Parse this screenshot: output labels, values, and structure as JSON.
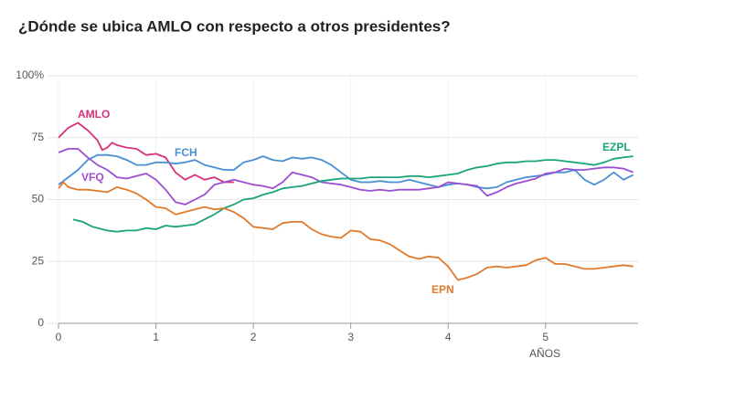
{
  "chart_data": {
    "type": "line",
    "title": "¿Dónde se ubica AMLO con respecto a otros presidentes?",
    "x_label": "AÑOS",
    "xlim": [
      0,
      5.95
    ],
    "xticks": [
      0,
      1,
      2,
      3,
      4,
      5
    ],
    "ylim": [
      0,
      100
    ],
    "yticks": [
      0,
      25,
      50,
      75,
      {
        "value": 100,
        "label": "100%"
      }
    ],
    "grid": true,
    "series": [
      {
        "name": "AMLO",
        "color": "#d9317a",
        "x": [
          0,
          0.1,
          0.2,
          0.3,
          0.4,
          0.45,
          0.5,
          0.55,
          0.6,
          0.7,
          0.8,
          0.9,
          1.0,
          1.1,
          1.2,
          1.3,
          1.4,
          1.5,
          1.6,
          1.7,
          1.8
        ],
        "values": [
          75,
          79,
          81,
          78,
          74,
          70,
          71,
          73,
          72,
          71,
          70.5,
          68,
          68.5,
          67,
          61,
          58,
          60,
          58,
          59,
          57,
          57
        ]
      },
      {
        "name": "FCH",
        "color": "#4a8fd4",
        "x": [
          0,
          0.1,
          0.2,
          0.3,
          0.4,
          0.5,
          0.6,
          0.7,
          0.8,
          0.9,
          1.0,
          1.1,
          1.2,
          1.3,
          1.4,
          1.5,
          1.6,
          1.7,
          1.8,
          1.9,
          2.0,
          2.1,
          2.2,
          2.3,
          2.4,
          2.5,
          2.6,
          2.7,
          2.8,
          2.9,
          3.0,
          3.1,
          3.2,
          3.3,
          3.4,
          3.5,
          3.6,
          3.7,
          3.8,
          3.9,
          4.0,
          4.1,
          4.2,
          4.3,
          4.4,
          4.5,
          4.6,
          4.7,
          4.8,
          4.9,
          5.0,
          5.1,
          5.2,
          5.3,
          5.4,
          5.5,
          5.6,
          5.7,
          5.8,
          5.9
        ],
        "values": [
          56,
          59,
          62,
          66,
          68,
          68,
          67.5,
          66,
          64,
          64,
          65,
          65,
          64.5,
          65,
          66,
          64,
          63,
          62,
          62,
          65,
          66,
          67.5,
          66,
          65.5,
          67,
          66.5,
          67,
          66,
          64,
          61,
          58,
          57,
          57,
          57.5,
          57,
          57,
          58,
          57,
          56,
          55,
          56,
          56.5,
          56,
          55,
          54.5,
          55,
          57,
          58,
          59,
          59.5,
          60,
          61,
          61,
          62,
          58,
          56,
          58,
          61,
          58,
          60
        ]
      },
      {
        "name": "VFQ",
        "color": "#9c4fd0",
        "x": [
          0,
          0.1,
          0.2,
          0.3,
          0.4,
          0.5,
          0.6,
          0.7,
          0.8,
          0.9,
          1.0,
          1.1,
          1.2,
          1.3,
          1.4,
          1.5,
          1.6,
          1.7,
          1.8,
          1.9,
          2.0,
          2.1,
          2.2,
          2.3,
          2.4,
          2.5,
          2.6,
          2.7,
          2.8,
          2.9,
          3.0,
          3.1,
          3.2,
          3.3,
          3.4,
          3.5,
          3.6,
          3.7,
          3.8,
          3.9,
          4.0,
          4.1,
          4.2,
          4.3,
          4.4,
          4.5,
          4.6,
          4.7,
          4.8,
          4.9,
          5.0,
          5.1,
          5.2,
          5.3,
          5.4,
          5.5,
          5.6,
          5.7,
          5.8,
          5.9
        ],
        "values": [
          69,
          70.5,
          70.5,
          67,
          64,
          62,
          59,
          58.5,
          59.5,
          60.5,
          58,
          54,
          49,
          48,
          50,
          52,
          56,
          57,
          58,
          57,
          56,
          55.5,
          54.5,
          57,
          61,
          60,
          59,
          57,
          56.5,
          56,
          55,
          54,
          53.5,
          54,
          53.5,
          54,
          54,
          54,
          54.5,
          55,
          57,
          56.5,
          56,
          55.5,
          51.5,
          53,
          55,
          56.5,
          57.5,
          58.5,
          60.5,
          61,
          62.5,
          62,
          62,
          62.5,
          63,
          63,
          62.5,
          61
        ]
      },
      {
        "name": "EZPL",
        "color": "#18a57a",
        "x": [
          0.15,
          0.25,
          0.35,
          0.5,
          0.6,
          0.7,
          0.8,
          0.9,
          1.0,
          1.1,
          1.2,
          1.3,
          1.4,
          1.5,
          1.6,
          1.7,
          1.8,
          1.9,
          2.0,
          2.1,
          2.2,
          2.3,
          2.4,
          2.5,
          2.6,
          2.7,
          2.8,
          2.9,
          3.0,
          3.1,
          3.2,
          3.3,
          3.4,
          3.5,
          3.6,
          3.7,
          3.8,
          3.9,
          4.0,
          4.1,
          4.2,
          4.3,
          4.4,
          4.5,
          4.6,
          4.7,
          4.8,
          4.9,
          5.0,
          5.1,
          5.2,
          5.3,
          5.4,
          5.5,
          5.6,
          5.7,
          5.8,
          5.9
        ],
        "values": [
          42,
          41,
          39,
          37.5,
          37,
          37.5,
          37.5,
          38.5,
          38,
          39.5,
          39,
          39.5,
          40,
          42,
          44,
          46.5,
          48,
          50,
          50.5,
          52,
          53,
          54.5,
          55,
          55.5,
          56.5,
          57.5,
          58,
          58.5,
          58.5,
          58.5,
          59,
          59,
          59,
          59,
          59.5,
          59.5,
          59,
          59.5,
          60,
          60.5,
          62,
          63,
          63.5,
          64.5,
          65,
          65,
          65.5,
          65.5,
          66,
          66,
          65.5,
          65,
          64.5,
          64,
          65,
          66.5,
          67,
          67.5
        ]
      },
      {
        "name": "EPN",
        "color": "#e07a2c",
        "x": [
          0,
          0.05,
          0.1,
          0.2,
          0.3,
          0.4,
          0.5,
          0.6,
          0.7,
          0.8,
          0.9,
          1.0,
          1.1,
          1.2,
          1.3,
          1.4,
          1.5,
          1.6,
          1.7,
          1.8,
          1.9,
          2.0,
          2.1,
          2.2,
          2.3,
          2.4,
          2.5,
          2.6,
          2.7,
          2.8,
          2.9,
          3.0,
          3.1,
          3.2,
          3.3,
          3.4,
          3.5,
          3.6,
          3.7,
          3.8,
          3.9,
          4.0,
          4.1,
          4.2,
          4.3,
          4.4,
          4.5,
          4.6,
          4.7,
          4.8,
          4.9,
          5.0,
          5.1,
          5.2,
          5.3,
          5.4,
          5.5,
          5.6,
          5.7,
          5.8,
          5.9
        ],
        "values": [
          54.5,
          57,
          55,
          54,
          54,
          53.5,
          53,
          55,
          54,
          52.5,
          50,
          47,
          46.5,
          44,
          45,
          46,
          47,
          46,
          46.5,
          45,
          42.5,
          39,
          38.5,
          38,
          40.5,
          41,
          41,
          38,
          36,
          35,
          34.5,
          37.5,
          37,
          34,
          33.5,
          32,
          29.5,
          27,
          26,
          27,
          26.5,
          23,
          17.5,
          18.5,
          20,
          22.5,
          23,
          22.5,
          23,
          23.5,
          25.5,
          26.5,
          24,
          24,
          23,
          22,
          22,
          22.5,
          23,
          23.5,
          23
        ]
      }
    ]
  }
}
